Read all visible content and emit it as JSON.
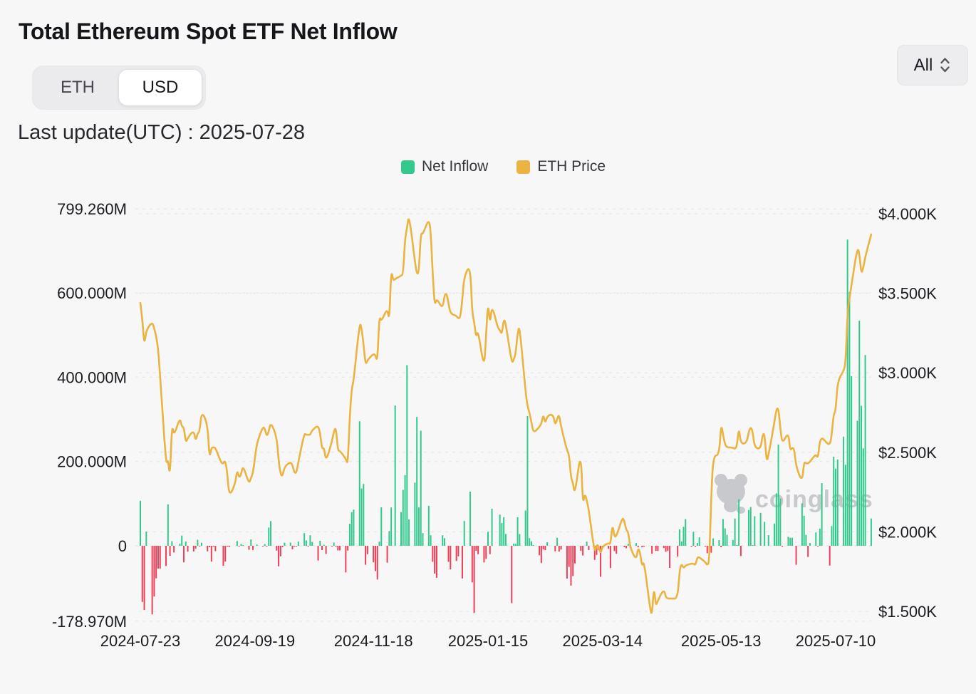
{
  "header": {
    "title": "Total Ethereum Spot ETF Net Inflow",
    "toggle": {
      "options": [
        "ETH",
        "USD"
      ],
      "selected": "USD"
    },
    "range_selector": "All",
    "last_update": "Last update(UTC) : 2025-07-28"
  },
  "legend": [
    {
      "label": "Net Inflow",
      "color": "#33c98c"
    },
    {
      "label": "ETH Price",
      "color": "#ebb340"
    }
  ],
  "watermark": {
    "text": "coinglass",
    "icon": "bear-logo",
    "color": "#c5c6ca"
  },
  "colors": {
    "positive_bar": "#33c98c",
    "negative_bar": "#ec4058",
    "price_line": "#ebb340",
    "gridline": "#e3e4e8",
    "axis_text": "#1b1c20",
    "background": "#f7f7f8"
  },
  "chart_data": {
    "type": "combo-bar-line",
    "title": "Total Ethereum Spot ETF Net Inflow",
    "grid": "horizontal-dashed",
    "legend_position": "top-center",
    "y_left": {
      "unit": "M USD",
      "range": [
        -178.97,
        799.26
      ],
      "labels": [
        {
          "label": "799.260M",
          "value": 799.26
        },
        {
          "label": "600.000M",
          "value": 600
        },
        {
          "label": "400.000M",
          "value": 400
        },
        {
          "label": "200.000M",
          "value": 200
        },
        {
          "label": "0",
          "value": 0
        },
        {
          "label": "-178.970M",
          "value": -178.97
        }
      ]
    },
    "y_right": {
      "unit": "K USD",
      "range": [
        1.5,
        4.0
      ],
      "labels": [
        {
          "label": "$4.000K",
          "value": 4.0
        },
        {
          "label": "$3.500K",
          "value": 3.5
        },
        {
          "label": "$3.000K",
          "value": 3.0
        },
        {
          "label": "$2.500K",
          "value": 2.5
        },
        {
          "label": "$2.000K",
          "value": 2.0
        },
        {
          "label": "$1.500K",
          "value": 1.5
        }
      ]
    },
    "x_ticks": [
      "2024-07-23",
      "2024-09-19",
      "2024-11-18",
      "2025-01-15",
      "2025-03-14",
      "2025-05-13",
      "2025-07-10"
    ],
    "series_names": [
      "Net Inflow (M USD)",
      "ETH Price (K USD)"
    ],
    "series": [
      [
        "2024-07-23",
        106.8,
        3.44
      ],
      [
        "2024-07-24",
        -133.3,
        3.34
      ],
      [
        "2024-07-25",
        -152.4,
        3.17
      ],
      [
        "2024-07-26",
        33.7,
        3.27
      ],
      [
        "2024-07-29",
        -162.7,
        3.32
      ],
      [
        "2024-07-30",
        -120.3,
        3.28
      ],
      [
        "2024-07-31",
        -77.2,
        3.23
      ],
      [
        "2024-08-01",
        -54.3,
        3.15
      ],
      [
        "2024-08-02",
        -54.0,
        2.99
      ],
      [
        "2024-08-05",
        -47.9,
        2.42
      ],
      [
        "2024-08-06",
        98.4,
        2.46
      ],
      [
        "2024-08-07",
        -23.7,
        2.34
      ],
      [
        "2024-08-08",
        10.8,
        2.68
      ],
      [
        "2024-08-09",
        -15.8,
        2.6
      ],
      [
        "2024-08-12",
        5.0,
        2.72
      ],
      [
        "2024-08-13",
        24.3,
        2.66
      ],
      [
        "2024-08-14",
        -39.2,
        2.66
      ],
      [
        "2024-08-15",
        10.2,
        2.56
      ],
      [
        "2024-08-16",
        -14.0,
        2.59
      ],
      [
        "2024-08-19",
        -13.5,
        2.64
      ],
      [
        "2024-08-20",
        -6.5,
        2.57
      ],
      [
        "2024-08-21",
        14.3,
        2.62
      ],
      [
        "2024-08-22",
        -0.8,
        2.63
      ],
      [
        "2024-08-23",
        7.2,
        2.76
      ],
      [
        "2024-08-26",
        -13.2,
        2.68
      ],
      [
        "2024-08-27",
        -3.4,
        2.46
      ],
      [
        "2024-08-28",
        -37.5,
        2.53
      ],
      [
        "2024-08-29",
        -1.7,
        2.53
      ],
      [
        "2024-08-30",
        -12.6,
        2.53
      ],
      [
        "2024-09-02",
        0,
        2.43
      ],
      [
        "2024-09-03",
        -47.4,
        2.43
      ],
      [
        "2024-09-04",
        -37.5,
        2.45
      ],
      [
        "2024-09-05",
        -0.4,
        2.37
      ],
      [
        "2024-09-06",
        -2.9,
        2.22
      ],
      [
        "2024-09-09",
        0,
        2.3
      ],
      [
        "2024-09-10",
        11.4,
        2.39
      ],
      [
        "2024-09-11",
        -0.5,
        2.34
      ],
      [
        "2024-09-12",
        4.2,
        2.36
      ],
      [
        "2024-09-13",
        1.0,
        2.42
      ],
      [
        "2024-09-16",
        -9.4,
        2.3
      ],
      [
        "2024-09-17",
        15.1,
        2.34
      ],
      [
        "2024-09-18",
        -9.8,
        2.37
      ],
      [
        "2024-09-19",
        0,
        2.46
      ],
      [
        "2024-09-20",
        2.9,
        2.56
      ],
      [
        "2024-09-23",
        -0.5,
        2.66
      ],
      [
        "2024-09-24",
        4.0,
        2.65
      ],
      [
        "2024-09-25",
        -0.8,
        2.6
      ],
      [
        "2024-09-26",
        43.2,
        2.63
      ],
      [
        "2024-09-27",
        58.7,
        2.69
      ],
      [
        "2024-09-30",
        -11.5,
        2.6
      ],
      [
        "2024-10-01",
        -48.6,
        2.45
      ],
      [
        "2024-10-02",
        -25.0,
        2.36
      ],
      [
        "2024-10-03",
        -3.2,
        2.35
      ],
      [
        "2024-10-04",
        7.4,
        2.41
      ],
      [
        "2024-10-07",
        7.6,
        2.44
      ],
      [
        "2024-10-08",
        -8.2,
        2.42
      ],
      [
        "2024-10-09",
        -0.1,
        2.37
      ],
      [
        "2024-10-10",
        -0.5,
        2.37
      ],
      [
        "2024-10-11",
        10.1,
        2.44
      ],
      [
        "2024-10-14",
        30.0,
        2.62
      ],
      [
        "2024-10-15",
        12.7,
        2.61
      ],
      [
        "2024-10-16",
        -0.3,
        2.61
      ],
      [
        "2024-10-17",
        25.0,
        2.61
      ],
      [
        "2024-10-18",
        9.2,
        2.64
      ],
      [
        "2024-10-21",
        -35.0,
        2.67
      ],
      [
        "2024-10-22",
        11.9,
        2.62
      ],
      [
        "2024-10-23",
        -10.2,
        2.52
      ],
      [
        "2024-10-24",
        2.3,
        2.53
      ],
      [
        "2024-10-25",
        -19.2,
        2.44
      ],
      [
        "2024-10-28",
        -1.1,
        2.57
      ],
      [
        "2024-10-29",
        7.7,
        2.63
      ],
      [
        "2024-10-30",
        -2.0,
        2.66
      ],
      [
        "2024-10-31",
        -11.0,
        2.51
      ],
      [
        "2024-11-01",
        -10.9,
        2.51
      ],
      [
        "2024-11-04",
        -63.2,
        2.46
      ],
      [
        "2024-11-05",
        -11.4,
        2.42
      ],
      [
        "2024-11-06",
        52.3,
        2.72
      ],
      [
        "2024-11-07",
        79.7,
        2.9
      ],
      [
        "2024-11-08",
        85.9,
        2.95
      ],
      [
        "2024-11-11",
        295.5,
        3.32
      ],
      [
        "2024-11-12",
        135.9,
        3.28
      ],
      [
        "2024-11-13",
        146.9,
        3.18
      ],
      [
        "2024-11-14",
        -45.0,
        3.05
      ],
      [
        "2024-11-15",
        -20.0,
        3.08
      ],
      [
        "2024-11-18",
        -39.1,
        3.12
      ],
      [
        "2024-11-19",
        -60.0,
        3.11
      ],
      [
        "2024-11-20",
        -80.0,
        3.07
      ],
      [
        "2024-11-21",
        9.9,
        3.36
      ],
      [
        "2024-11-22",
        91.2,
        3.32
      ],
      [
        "2024-11-25",
        -40.0,
        3.41
      ],
      [
        "2024-11-26",
        35.0,
        3.32
      ],
      [
        "2024-11-27",
        91.0,
        3.65
      ],
      [
        "2024-11-28",
        0,
        3.58
      ],
      [
        "2024-11-29",
        332.9,
        3.59
      ],
      [
        "2024-12-02",
        80.0,
        3.61
      ],
      [
        "2024-12-03",
        132.7,
        3.62
      ],
      [
        "2024-12-04",
        167.7,
        3.84
      ],
      [
        "2024-12-05",
        428.5,
        3.91
      ],
      [
        "2024-12-06",
        62.7,
        4.0
      ],
      [
        "2024-12-09",
        149.7,
        3.7
      ],
      [
        "2024-12-10",
        305.7,
        3.62
      ],
      [
        "2024-12-11",
        91.0,
        3.63
      ],
      [
        "2024-12-12",
        273.0,
        3.88
      ],
      [
        "2024-12-13",
        30.0,
        3.87
      ],
      [
        "2024-12-16",
        95.0,
        3.97
      ],
      [
        "2024-12-17",
        25.0,
        3.89
      ],
      [
        "2024-12-18",
        -38.0,
        3.62
      ],
      [
        "2024-12-19",
        -66.0,
        3.42
      ],
      [
        "2024-12-20",
        -75.9,
        3.47
      ],
      [
        "2024-12-23",
        25.0,
        3.4
      ],
      [
        "2024-12-24",
        18.0,
        3.49
      ],
      [
        "2024-12-25",
        0,
        3.5
      ],
      [
        "2024-12-26",
        -38.0,
        3.44
      ],
      [
        "2024-12-27",
        -56.0,
        3.37
      ],
      [
        "2024-12-30",
        -36.0,
        3.36
      ],
      [
        "2024-12-31",
        -25.0,
        3.34
      ],
      [
        "2025-01-01",
        0,
        3.35
      ],
      [
        "2025-01-02",
        -77.5,
        3.46
      ],
      [
        "2025-01-03",
        58.9,
        3.61
      ],
      [
        "2025-01-06",
        128.7,
        3.68
      ],
      [
        "2025-01-07",
        -86.8,
        3.38
      ],
      [
        "2025-01-08",
        -159.3,
        3.32
      ],
      [
        "2025-01-09",
        -12.0,
        3.22
      ],
      [
        "2025-01-10",
        -20.0,
        3.27
      ],
      [
        "2025-01-13",
        -39.4,
        3.02
      ],
      [
        "2025-01-14",
        -31.0,
        3.22
      ],
      [
        "2025-01-15",
        33.2,
        3.45
      ],
      [
        "2025-01-16",
        -19.8,
        3.3
      ],
      [
        "2025-01-17",
        88.0,
        3.43
      ],
      [
        "2025-01-20",
        0,
        3.28
      ],
      [
        "2025-01-21",
        74.0,
        3.27
      ],
      [
        "2025-01-22",
        54.0,
        3.24
      ],
      [
        "2025-01-23",
        68.0,
        3.34
      ],
      [
        "2025-01-24",
        28.0,
        3.31
      ],
      [
        "2025-01-27",
        -136.0,
        3.06
      ],
      [
        "2025-01-28",
        5.0,
        3.08
      ],
      [
        "2025-01-29",
        4.7,
        3.12
      ],
      [
        "2025-01-30",
        67.8,
        3.25
      ],
      [
        "2025-01-31",
        27.8,
        3.3
      ],
      [
        "2025-02-03",
        83.6,
        2.88
      ],
      [
        "2025-02-04",
        307.8,
        2.79
      ],
      [
        "2025-02-05",
        18.1,
        2.75
      ],
      [
        "2025-02-06",
        10.7,
        2.69
      ],
      [
        "2025-02-07",
        0.2,
        2.62
      ],
      [
        "2025-02-10",
        -22.5,
        2.66
      ],
      [
        "2025-02-11",
        -40.9,
        2.68
      ],
      [
        "2025-02-12",
        -8.5,
        2.74
      ],
      [
        "2025-02-13",
        -10.4,
        2.68
      ],
      [
        "2025-02-14",
        8.4,
        2.73
      ],
      [
        "2025-02-17",
        0,
        2.74
      ],
      [
        "2025-02-18",
        -13.1,
        2.67
      ],
      [
        "2025-02-19",
        19.0,
        2.71
      ],
      [
        "2025-02-20",
        -13.9,
        2.74
      ],
      [
        "2025-02-21",
        -8.9,
        2.66
      ],
      [
        "2025-02-24",
        -78.0,
        2.51
      ],
      [
        "2025-02-25",
        -50.1,
        2.49
      ],
      [
        "2025-02-26",
        -94.3,
        2.34
      ],
      [
        "2025-02-27",
        -71.8,
        2.31
      ],
      [
        "2025-02-28",
        -41.9,
        2.23
      ],
      [
        "2025-03-03",
        -12.1,
        2.52
      ],
      [
        "2025-03-04",
        -23.0,
        2.17
      ],
      [
        "2025-03-05",
        0,
        2.24
      ],
      [
        "2025-03-06",
        10.0,
        2.2
      ],
      [
        "2025-03-07",
        -10.0,
        2.14
      ],
      [
        "2025-03-10",
        -33.3,
        1.86
      ],
      [
        "2025-03-11",
        -21.6,
        1.92
      ],
      [
        "2025-03-12",
        -10.3,
        1.91
      ],
      [
        "2025-03-13",
        -73.6,
        1.86
      ],
      [
        "2025-03-14",
        -2.7,
        1.91
      ],
      [
        "2025-03-17",
        -7.3,
        1.93
      ],
      [
        "2025-03-18",
        -52.8,
        1.92
      ],
      [
        "2025-03-19",
        0,
        2.05
      ],
      [
        "2025-03-20",
        -12.5,
        1.97
      ],
      [
        "2025-03-21",
        -18.9,
        1.97
      ],
      [
        "2025-03-24",
        0,
        2.09
      ],
      [
        "2025-03-25",
        -3.2,
        2.07
      ],
      [
        "2025-03-26",
        -5.9,
        2.01
      ],
      [
        "2025-03-27",
        4.7,
        2.0
      ],
      [
        "2025-03-28",
        -4.7,
        1.9
      ],
      [
        "2025-03-31",
        6.4,
        1.82
      ],
      [
        "2025-04-01",
        -3.6,
        1.9
      ],
      [
        "2025-04-02",
        0,
        1.87
      ],
      [
        "2025-04-03",
        -3.7,
        1.78
      ],
      [
        "2025-04-04",
        -2.2,
        1.82
      ],
      [
        "2025-04-07",
        0,
        1.52
      ],
      [
        "2025-04-08",
        -18.8,
        1.47
      ],
      [
        "2025-04-09",
        0,
        1.66
      ],
      [
        "2025-04-10",
        -12.0,
        1.53
      ],
      [
        "2025-04-11",
        -12.2,
        1.57
      ],
      [
        "2025-04-14",
        -5.4,
        1.64
      ],
      [
        "2025-04-15",
        -14.2,
        1.59
      ],
      [
        "2025-04-16",
        -12.1,
        1.58
      ],
      [
        "2025-04-17",
        -52.3,
        1.58
      ],
      [
        "2025-04-18",
        0,
        1.58
      ],
      [
        "2025-04-21",
        -25.4,
        1.58
      ],
      [
        "2025-04-22",
        38.8,
        1.76
      ],
      [
        "2025-04-23",
        10.2,
        1.8
      ],
      [
        "2025-04-24",
        45.0,
        1.77
      ],
      [
        "2025-04-25",
        63.5,
        1.79
      ],
      [
        "2025-04-28",
        -2.2,
        1.8
      ],
      [
        "2025-04-29",
        33.3,
        1.8
      ],
      [
        "2025-04-30",
        -2.3,
        1.79
      ],
      [
        "2025-05-01",
        6.5,
        1.84
      ],
      [
        "2025-05-02",
        20.1,
        1.84
      ],
      [
        "2025-05-05",
        -0.4,
        1.81
      ],
      [
        "2025-05-06",
        -17.7,
        1.79
      ],
      [
        "2025-05-07",
        -21.8,
        1.81
      ],
      [
        "2025-05-08",
        -16.2,
        2.21
      ],
      [
        "2025-05-09",
        17.6,
        2.48
      ],
      [
        "2025-05-12",
        13.4,
        2.48
      ],
      [
        "2025-05-13",
        -3.5,
        2.68
      ],
      [
        "2025-05-14",
        63.5,
        2.61
      ],
      [
        "2025-05-15",
        41.4,
        2.55
      ],
      [
        "2025-05-16",
        26.0,
        2.53
      ],
      [
        "2025-05-19",
        13.8,
        2.53
      ],
      [
        "2025-05-20",
        64.8,
        2.52
      ],
      [
        "2025-05-21",
        0.6,
        2.54
      ],
      [
        "2025-05-22",
        110.5,
        2.66
      ],
      [
        "2025-05-23",
        -24.3,
        2.55
      ],
      [
        "2025-05-26",
        0,
        2.56
      ],
      [
        "2025-05-27",
        84.9,
        2.63
      ],
      [
        "2025-05-28",
        91.9,
        2.66
      ],
      [
        "2025-05-29",
        0.3,
        2.63
      ],
      [
        "2025-05-30",
        70.2,
        2.53
      ],
      [
        "2025-06-02",
        78.2,
        2.52
      ],
      [
        "2025-06-03",
        0,
        2.61
      ],
      [
        "2025-06-04",
        56.8,
        2.62
      ],
      [
        "2025-06-05",
        0,
        2.44
      ],
      [
        "2025-06-06",
        25.3,
        2.48
      ],
      [
        "2025-06-09",
        52.7,
        2.69
      ],
      [
        "2025-06-10",
        124.5,
        2.77
      ],
      [
        "2025-06-11",
        240.3,
        2.78
      ],
      [
        "2025-06-12",
        112.0,
        2.65
      ],
      [
        "2025-06-13",
        -2.2,
        2.55
      ],
      [
        "2025-06-16",
        21.4,
        2.63
      ],
      [
        "2025-06-17",
        19.1,
        2.51
      ],
      [
        "2025-06-18",
        19.1,
        2.53
      ],
      [
        "2025-06-19",
        0,
        2.52
      ],
      [
        "2025-06-20",
        -45.0,
        2.41
      ],
      [
        "2025-06-23",
        100.7,
        2.31
      ],
      [
        "2025-06-24",
        71.3,
        2.44
      ],
      [
        "2025-06-25",
        26.0,
        2.43
      ],
      [
        "2025-06-26",
        -26.4,
        2.43
      ],
      [
        "2025-06-27",
        6.6,
        2.44
      ],
      [
        "2025-06-30",
        31.8,
        2.49
      ],
      [
        "2025-07-01",
        -1.8,
        2.46
      ],
      [
        "2025-07-02",
        40.7,
        2.57
      ],
      [
        "2025-07-03",
        148.6,
        2.59
      ],
      [
        "2025-07-04",
        0,
        2.58
      ],
      [
        "2025-07-07",
        -46.9,
        2.54
      ],
      [
        "2025-07-08",
        46.6,
        2.61
      ],
      [
        "2025-07-09",
        211.3,
        2.74
      ],
      [
        "2025-07-10",
        183.0,
        2.76
      ],
      [
        "2025-07-11",
        204.8,
        2.95
      ],
      [
        "2025-07-14",
        259.0,
        3.01
      ],
      [
        "2025-07-15",
        192.3,
        3.06
      ],
      [
        "2025-07-16",
        726.6,
        3.38
      ],
      [
        "2025-07-17",
        602.0,
        3.47
      ],
      [
        "2025-07-18",
        402.5,
        3.55
      ],
      [
        "2025-07-21",
        296.5,
        3.79
      ],
      [
        "2025-07-22",
        533.9,
        3.75
      ],
      [
        "2025-07-23",
        332.2,
        3.62
      ],
      [
        "2025-07-24",
        231.2,
        3.66
      ],
      [
        "2025-07-25",
        452.7,
        3.73
      ],
      [
        "2025-07-28",
        64.8,
        3.87
      ]
    ]
  }
}
